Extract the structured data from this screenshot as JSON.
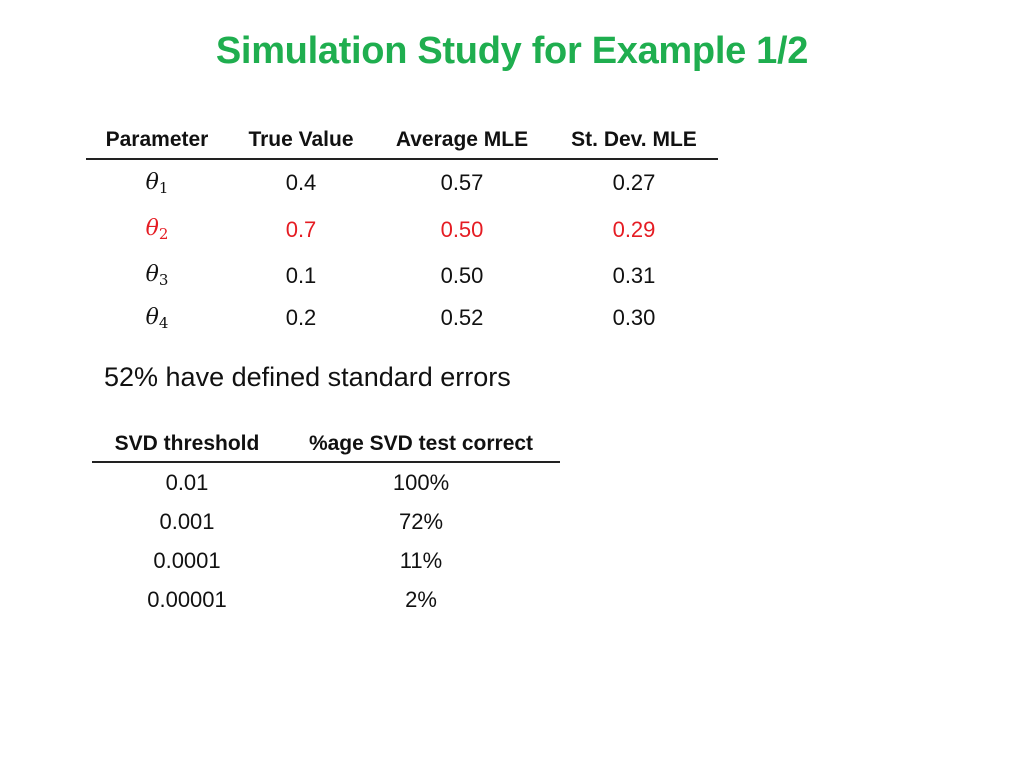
{
  "title": "Simulation Study for Example 1/2",
  "param_table": {
    "headers": [
      "Parameter",
      "True Value",
      "Average MLE",
      "St. Dev. MLE"
    ],
    "rows": [
      {
        "symbol": "θ",
        "sub": "1",
        "true": "0.4",
        "avg": "0.57",
        "sd": "0.27"
      },
      {
        "symbol": "θ",
        "sub": "2",
        "true": "0.7",
        "avg": "0.50",
        "sd": "0.29"
      },
      {
        "symbol": "θ",
        "sub": "3",
        "true": "0.1",
        "avg": "0.50",
        "sd": "0.31"
      },
      {
        "symbol": "θ",
        "sub": "4",
        "true": "0.2",
        "avg": "0.52",
        "sd": "0.30"
      }
    ],
    "highlight_color": "#e51c23"
  },
  "note": "52% have defined standard errors",
  "svd_table": {
    "headers": [
      "SVD threshold",
      "%age SVD test correct"
    ],
    "rows": [
      {
        "threshold": "0.01",
        "correct": "100%"
      },
      {
        "threshold": "0.001",
        "correct": "72%"
      },
      {
        "threshold": "0.0001",
        "correct": "11%"
      },
      {
        "threshold": "0.00001",
        "correct": "2%"
      }
    ]
  },
  "colors": {
    "title": "#1fae4f",
    "text": "#111111"
  }
}
